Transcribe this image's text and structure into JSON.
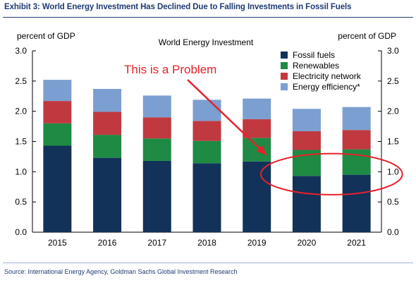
{
  "header": {
    "exhibit_title": "Exhibit 3: World Energy Investment Has Declined Due to Falling Investments in Fossil Fuels"
  },
  "source": "Source: International Energy Agency, Goldman Sachs Global Investment Research",
  "chart_data": {
    "type": "bar",
    "stacked": true,
    "title": "World Energy Investment",
    "ylabel_left": "percent of GDP",
    "ylabel_right": "percent of GDP",
    "ylim": [
      0,
      3.0
    ],
    "yticks": [
      "0.0",
      "0.5",
      "1.0",
      "1.5",
      "2.0",
      "2.5",
      "3.0"
    ],
    "categories": [
      "2015",
      "2016",
      "2017",
      "2018",
      "2019",
      "2020",
      "2021"
    ],
    "series": [
      {
        "name": "Fossil fuels",
        "color": "#12325a",
        "values": [
          1.43,
          1.23,
          1.18,
          1.14,
          1.17,
          0.93,
          0.95
        ]
      },
      {
        "name": "Renewables",
        "color": "#1e8a43",
        "values": [
          0.37,
          0.38,
          0.37,
          0.37,
          0.39,
          0.43,
          0.42
        ]
      },
      {
        "name": "Electricity network",
        "color": "#c0393f",
        "values": [
          0.37,
          0.38,
          0.35,
          0.33,
          0.31,
          0.31,
          0.32
        ]
      },
      {
        "name": "Energy efficiency*",
        "color": "#7b9fd0",
        "values": [
          0.35,
          0.38,
          0.36,
          0.35,
          0.34,
          0.37,
          0.38
        ]
      }
    ],
    "legend_position": "top-right",
    "grid": false,
    "annotation": {
      "text": "This is a Problem",
      "color": "#e8202a",
      "highlighted_categories": [
        "2020",
        "2021"
      ]
    }
  }
}
